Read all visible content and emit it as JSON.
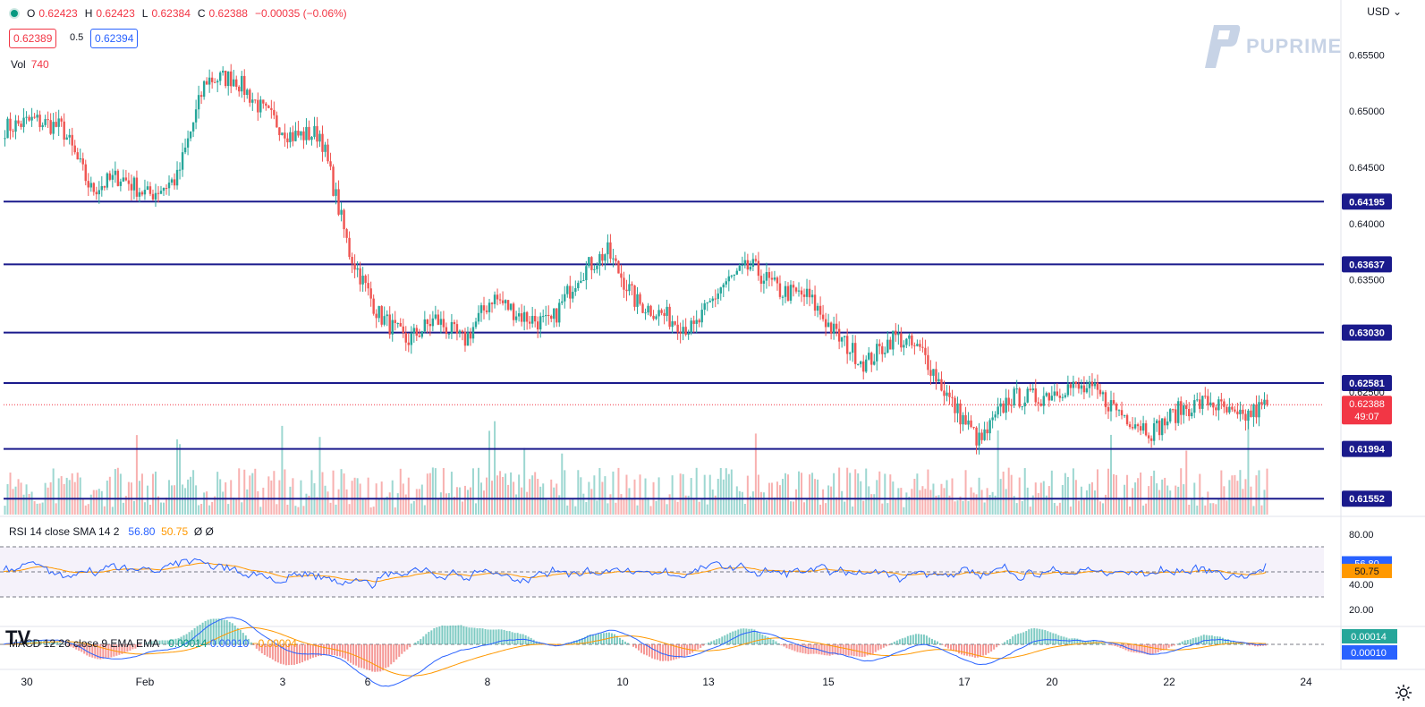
{
  "header": {
    "open_label": "O",
    "open": "0.62423",
    "high_label": "H",
    "high": "0.62423",
    "low_label": "L",
    "low": "0.62384",
    "close_label": "C",
    "close": "0.62388",
    "change": "−0.00035 (−0.06%)",
    "bid": "0.62389",
    "spread": "0.5",
    "ask": "0.62394",
    "vol_label": "Vol",
    "vol_value": "740",
    "currency": "USD"
  },
  "brand": {
    "logo_text": "PUPRIME",
    "tv_logo": "TV"
  },
  "price_axis": {
    "ticks": [
      "0.65500",
      "0.65000",
      "0.64500",
      "0.64000",
      "0.63500",
      "0.62500"
    ],
    "levels": [
      "0.64195",
      "0.63637",
      "0.63030",
      "0.62581",
      "0.61994",
      "0.61552"
    ],
    "current_price": "0.62388",
    "countdown": "49:07"
  },
  "rsi": {
    "legend": "RSI 14 close SMA 14 2",
    "rsi_value": "56.80",
    "sma_value": "50.75",
    "flags": "Ø Ø",
    "ticks": [
      "80.00",
      "60.00",
      "40.00",
      "20.00"
    ]
  },
  "macd": {
    "legend": "MACD 12 26 close 9 EMA EMA",
    "hist": "0.00014",
    "macd": "0.00010",
    "signal": "−0.00004",
    "axis_hist": "0.00014",
    "axis_macd": "0.00010"
  },
  "time_axis": [
    "30",
    "Feb",
    "3",
    "6",
    "8",
    "10",
    "13",
    "15",
    "17",
    "20",
    "22",
    "24"
  ],
  "colors": {
    "up": "#26a69a",
    "down": "#ef5350",
    "level_line": "#1a1a8c",
    "rsi": "#2962ff",
    "sma": "#ff9800"
  },
  "chart_data": {
    "type": "candlestick",
    "symbol_price_range": [
      0.6145,
      0.6575
    ],
    "key_levels": [
      0.64195,
      0.63637,
      0.6303,
      0.62581,
      0.61994,
      0.61552
    ],
    "close_path": [
      {
        "t": "30",
        "v": 0.6485
      },
      {
        "t": "31",
        "v": 0.6492
      },
      {
        "t": "31b",
        "v": 0.6485
      },
      {
        "t": "Feb",
        "v": 0.643
      },
      {
        "t": "1",
        "v": 0.6442
      },
      {
        "t": "1b",
        "v": 0.6425
      },
      {
        "t": "2",
        "v": 0.644
      },
      {
        "t": "2b",
        "v": 0.6528
      },
      {
        "t": "3",
        "v": 0.653
      },
      {
        "t": "3b",
        "v": 0.65
      },
      {
        "t": "3c",
        "v": 0.6478
      },
      {
        "t": "5",
        "v": 0.648
      },
      {
        "t": "5b",
        "v": 0.6375
      },
      {
        "t": "6",
        "v": 0.632
      },
      {
        "t": "6b",
        "v": 0.6295
      },
      {
        "t": "7",
        "v": 0.6315
      },
      {
        "t": "7b",
        "v": 0.6295
      },
      {
        "t": "8",
        "v": 0.6335
      },
      {
        "t": "8b",
        "v": 0.6318
      },
      {
        "t": "9",
        "v": 0.631
      },
      {
        "t": "9b",
        "v": 0.6355
      },
      {
        "t": "10",
        "v": 0.6375
      },
      {
        "t": "10b",
        "v": 0.633
      },
      {
        "t": "12",
        "v": 0.6318
      },
      {
        "t": "13",
        "v": 0.6305
      },
      {
        "t": "13b",
        "v": 0.6345
      },
      {
        "t": "14",
        "v": 0.6362
      },
      {
        "t": "14b",
        "v": 0.634
      },
      {
        "t": "15",
        "v": 0.6335
      },
      {
        "t": "15b",
        "v": 0.63
      },
      {
        "t": "16",
        "v": 0.6275
      },
      {
        "t": "16b",
        "v": 0.63
      },
      {
        "t": "17",
        "v": 0.6285
      },
      {
        "t": "17b",
        "v": 0.624
      },
      {
        "t": "19",
        "v": 0.6205
      },
      {
        "t": "19b",
        "v": 0.6245
      },
      {
        "t": "20",
        "v": 0.6245
      },
      {
        "t": "20b",
        "v": 0.6255
      },
      {
        "t": "21",
        "v": 0.625
      },
      {
        "t": "21b",
        "v": 0.623
      },
      {
        "t": "22",
        "v": 0.6215
      },
      {
        "t": "22b",
        "v": 0.6235
      },
      {
        "t": "23",
        "v": 0.6242
      },
      {
        "t": "23b",
        "v": 0.6225
      },
      {
        "t": "23c",
        "v": 0.62388
      }
    ]
  }
}
